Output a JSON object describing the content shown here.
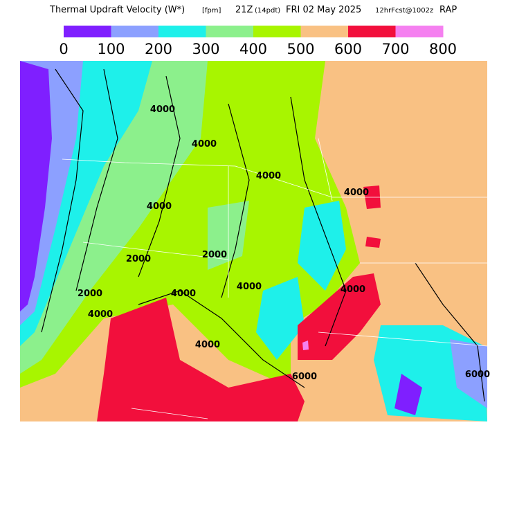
{
  "header": {
    "title_parts": [
      "Thermal Updraft Velocity (W*)",
      "[fpm]",
      "21Z",
      "(14pdt)",
      "FRI 02 May 2025",
      "12hrFcst@1002z",
      "RAP"
    ]
  },
  "legend": {
    "colors": [
      "#7f1fff",
      "#8ca0ff",
      "#1ef0ea",
      "#8cf08c",
      "#a8f500",
      "#f9c183",
      "#f20f3c",
      "#f580f0"
    ],
    "labels": [
      0,
      100,
      200,
      300,
      400,
      500,
      600,
      700,
      800
    ]
  },
  "map": {
    "contour_labels": [
      "4000",
      "4000",
      "4000",
      "4000",
      "4000",
      "2000",
      "2000",
      "4000",
      "4000",
      "2000",
      "4000",
      "4000",
      "4000",
      "6000",
      "6000"
    ]
  }
}
